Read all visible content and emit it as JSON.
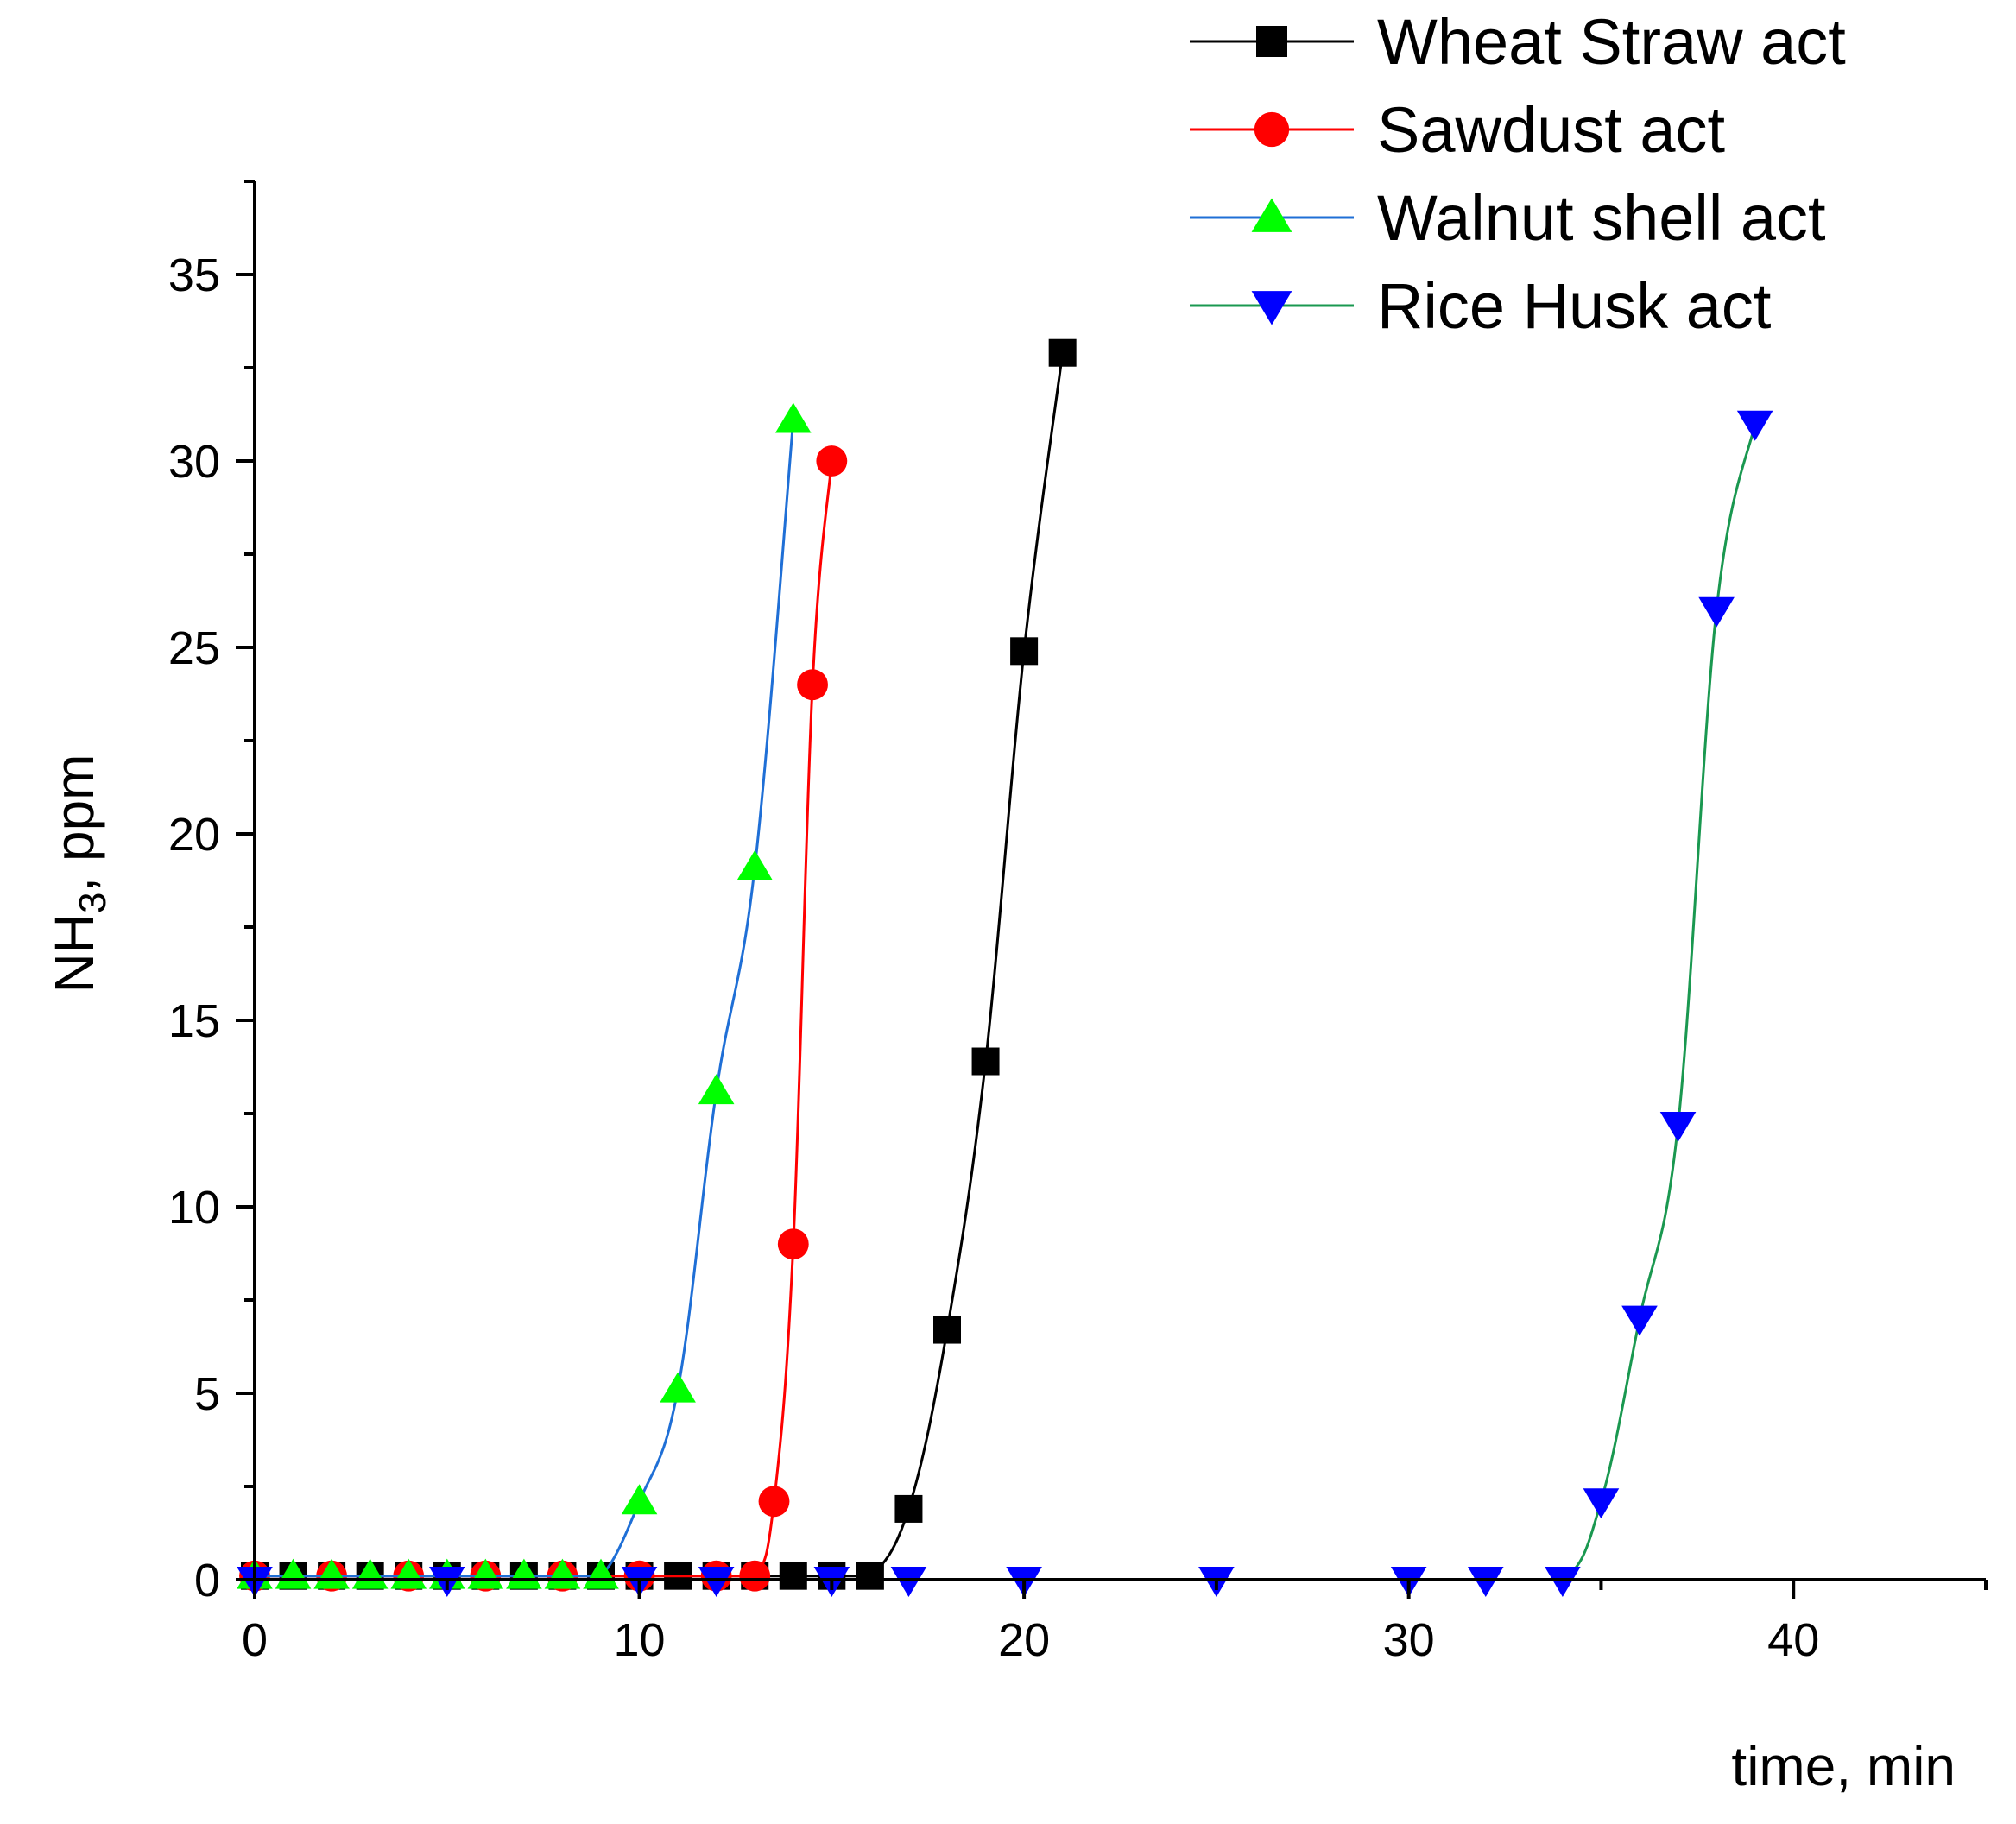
{
  "chart_data": {
    "type": "line",
    "xlabel": "time, min",
    "ylabel": {
      "main": "NH",
      "sub": "3",
      "tail": ", ppm"
    },
    "xlim": [
      0,
      45
    ],
    "ylim": [
      0,
      37.5
    ],
    "xticks": [
      0,
      10,
      20,
      30,
      40
    ],
    "yticks": [
      0,
      5,
      10,
      15,
      20,
      25,
      30,
      35
    ],
    "grid": false,
    "legend_position": "top-right",
    "series": [
      {
        "name": "Wheat Straw act",
        "color": "#000000",
        "marker": "square",
        "x": [
          0,
          1,
          2,
          3,
          4,
          5,
          6,
          7,
          8,
          9,
          10,
          11,
          12,
          13,
          14,
          15,
          16,
          17,
          18,
          19,
          20,
          21
        ],
        "y": [
          0.1,
          0.1,
          0.1,
          0.1,
          0.1,
          0.1,
          0.1,
          0.1,
          0.1,
          0.1,
          0.1,
          0.1,
          0.1,
          0.1,
          0.1,
          0.1,
          0.1,
          1.9,
          6.7,
          13.9,
          24.9,
          32.9
        ]
      },
      {
        "name": "Sawdust act",
        "color": "#ff0000",
        "marker": "circle",
        "x": [
          0,
          2,
          4,
          6,
          8,
          10,
          12,
          13,
          13.5,
          14,
          14.5,
          15
        ],
        "y": [
          0.1,
          0.1,
          0.1,
          0.1,
          0.1,
          0.1,
          0.1,
          0.1,
          2.1,
          9.0,
          24.0,
          30.0
        ]
      },
      {
        "name": "Walnut shell act",
        "color": "#00ff00",
        "line_color": "#1f6fd6",
        "marker": "triangle-up",
        "x": [
          0,
          1,
          2,
          3,
          4,
          5,
          6,
          7,
          8,
          9,
          10,
          11,
          12,
          13,
          14
        ],
        "y": [
          0.1,
          0.1,
          0.1,
          0.1,
          0.1,
          0.1,
          0.1,
          0.1,
          0.1,
          0.1,
          2.1,
          5.1,
          13.1,
          19.1,
          31.1
        ]
      },
      {
        "name": "Rice Husk act",
        "color": "#0000ff",
        "line_color": "#1a9850",
        "marker": "triangle-down",
        "x": [
          0,
          5,
          10,
          12,
          15,
          17,
          20,
          25,
          30,
          32,
          34,
          35,
          36,
          37,
          38,
          39
        ],
        "y": [
          0,
          0,
          0,
          0,
          0,
          0,
          0,
          0,
          0,
          0,
          0,
          2.1,
          7.0,
          12.2,
          26.0,
          31.0
        ]
      }
    ]
  }
}
